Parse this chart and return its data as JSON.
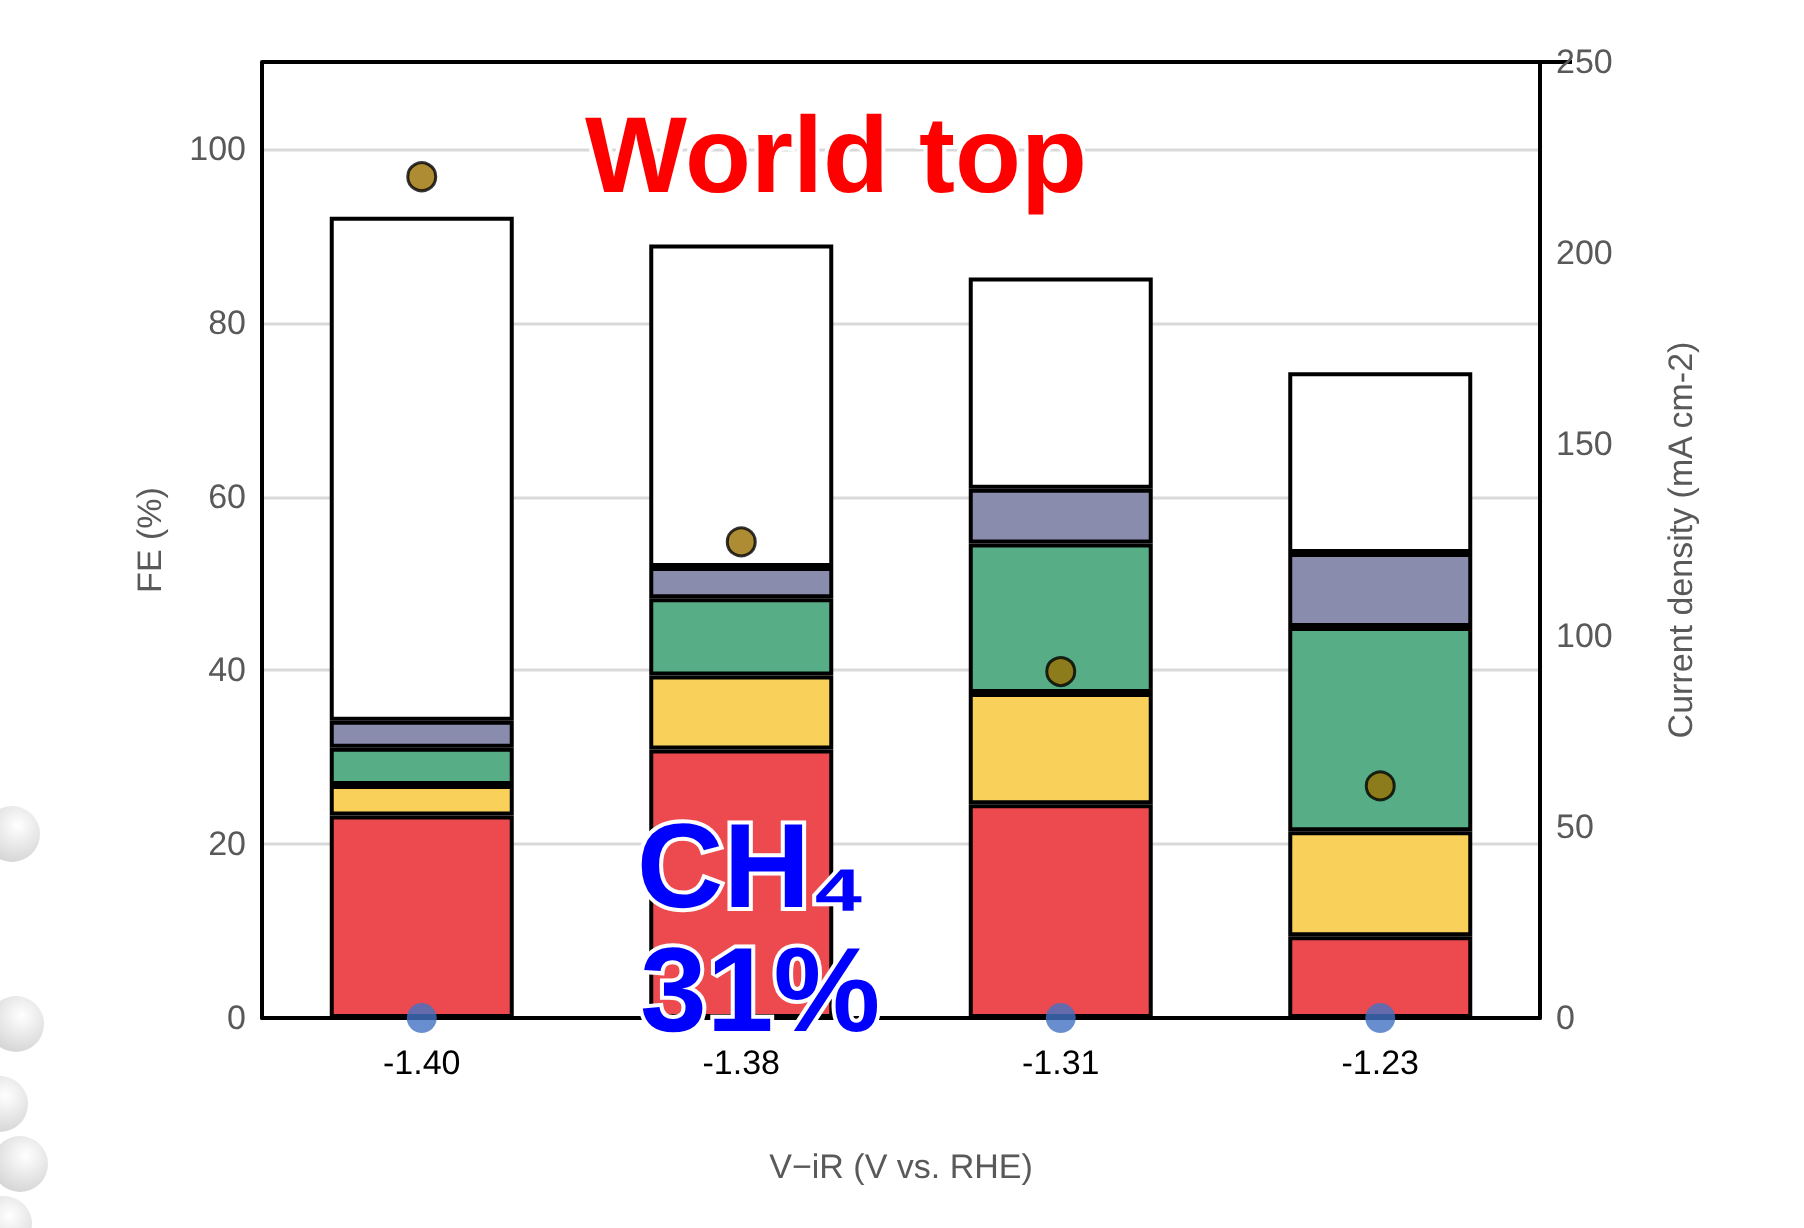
{
  "chart_data": {
    "type": "bar",
    "stacked": true,
    "categories": [
      "-1.40",
      "-1.38",
      "-1.31",
      "-1.23"
    ],
    "xlabel": "V−iR (V vs. RHE)",
    "ylabel": "FE (%)",
    "y2label": "Current density (mA cm-2)",
    "ylim": [
      0,
      110
    ],
    "yticks": [
      0,
      20,
      40,
      60,
      80,
      100
    ],
    "y2lim": [
      0,
      250
    ],
    "y2ticks": [
      0,
      50,
      100,
      150,
      200,
      250
    ],
    "grid": "y",
    "marker": "circle",
    "annotations": [
      "World top",
      "CH₄",
      "31%"
    ],
    "series": [
      {
        "color": "#ec4a4e",
        "values": [
          23.3,
          30.9,
          24.6,
          9.4
        ]
      },
      {
        "color": "#f8d05a",
        "values": [
          3.5,
          8.5,
          12.8,
          12.1
        ]
      },
      {
        "color": "#57ae86",
        "values": [
          4.3,
          8.9,
          17.2,
          23.5
        ]
      },
      {
        "color": "#8a8cae",
        "values": [
          3.1,
          3.6,
          6.3,
          8.5
        ]
      },
      {
        "color": "#ffffff",
        "values": [
          58.0,
          37.1,
          24.3,
          20.8
        ]
      },
      {
        "type": "scatter",
        "axis": "y2",
        "color": "#9a6f00",
        "x": [
          "-1.40",
          "-1.38",
          "-1.31",
          "-1.23"
        ],
        "values": [
          220,
          124.5,
          90.6,
          60.7
        ]
      },
      {
        "type": "scatter",
        "color": "#4472c4",
        "x": [
          "-1.40",
          "-1.38",
          "-1.31",
          "-1.23"
        ],
        "values": [
          0,
          null,
          0,
          0
        ]
      }
    ]
  }
}
